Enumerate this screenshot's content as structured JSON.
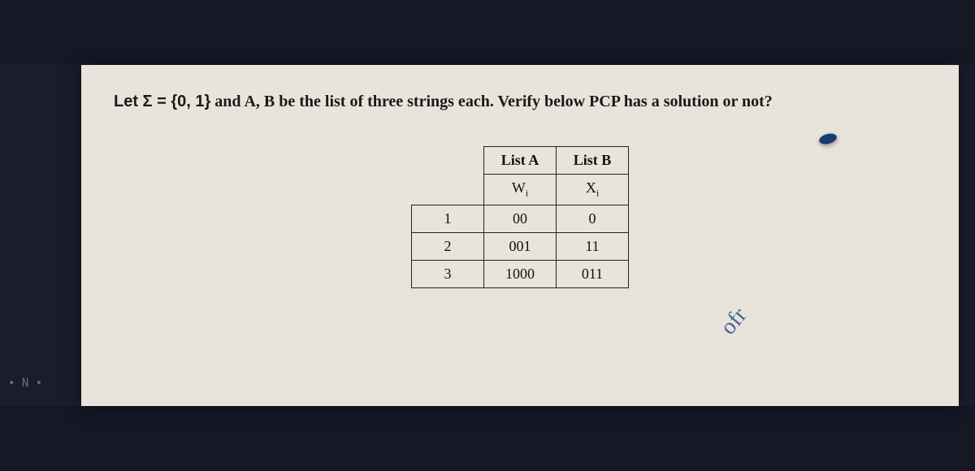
{
  "question": {
    "prefix": "Let Σ = ",
    "set": "{0, 1}",
    "rest": " and A, B be the list of three strings each. Verify below PCP has a solution or not?"
  },
  "table": {
    "header_blank": "",
    "header_a": "List A",
    "header_b": "List B",
    "sub_blank": "",
    "sub_a": "W",
    "sub_a_i": "i",
    "sub_b": "X",
    "sub_b_i": "i",
    "rows": [
      {
        "n": "1",
        "a": "00",
        "b": "0"
      },
      {
        "n": "2",
        "a": "001",
        "b": "11"
      },
      {
        "n": "3",
        "a": "1000",
        "b": "011"
      }
    ],
    "border_color": "#222222",
    "bg_color": "#e8e4db",
    "font_size": 18
  },
  "signature_text": "ofr",
  "edge_label": "• N •"
}
